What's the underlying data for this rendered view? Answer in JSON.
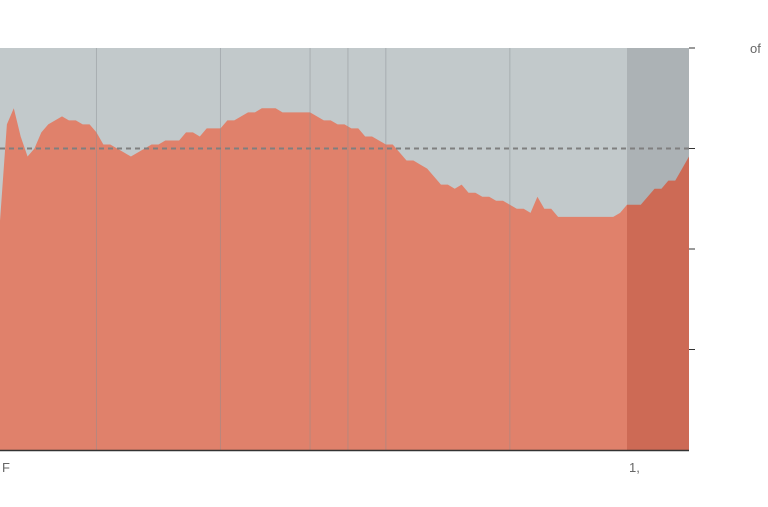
{
  "chart_data": {
    "type": "area",
    "title": "",
    "xlabel": "",
    "ylabel": "",
    "ylim": [
      0,
      100
    ],
    "y_ticks": [
      {
        "value": 100,
        "label": "of"
      },
      {
        "value": 75,
        "label": ""
      },
      {
        "value": 50,
        "label": ""
      },
      {
        "value": 25,
        "label": ""
      }
    ],
    "x_ticks": [
      {
        "label": "F",
        "x": 0
      },
      {
        "label": "",
        "x": 14
      },
      {
        "label": "",
        "x": 32
      },
      {
        "label": "",
        "x": 45
      },
      {
        "label": "",
        "x": 50.5
      },
      {
        "label": "",
        "x": 56
      },
      {
        "label": "",
        "x": 74
      },
      {
        "label": "1,",
        "x": 91
      },
      {
        "label": "",
        "x": 100
      }
    ],
    "reference_value": 75,
    "shaded_from": 91,
    "series": [
      {
        "x": [
          0,
          1,
          2,
          3,
          4,
          5,
          6,
          7,
          8,
          9,
          10,
          11,
          12,
          13,
          14,
          15,
          16,
          17,
          18,
          19,
          20,
          21,
          22,
          23,
          24,
          25,
          26,
          27,
          28,
          29,
          30,
          31,
          32,
          33,
          34,
          35,
          36,
          37,
          38,
          39,
          40,
          41,
          42,
          43,
          44,
          45,
          46,
          47,
          48,
          49,
          50,
          51,
          52,
          53,
          54,
          55,
          56,
          57,
          58,
          59,
          60,
          61,
          62,
          63,
          64,
          65,
          66,
          67,
          68,
          69,
          70,
          71,
          72,
          73,
          74,
          75,
          76,
          77,
          78,
          79,
          80,
          81,
          82,
          83,
          84,
          85,
          86,
          87,
          88,
          89,
          90,
          91,
          92,
          93,
          94,
          95,
          96,
          97,
          98,
          99,
          100
        ],
        "values": [
          57,
          81,
          85,
          78,
          73,
          75,
          79,
          81,
          82,
          83,
          82,
          82,
          81,
          81,
          79,
          76,
          76,
          75,
          74,
          73,
          74,
          75,
          76,
          76,
          77,
          77,
          77,
          79,
          79,
          78,
          80,
          80,
          80,
          82,
          82,
          83,
          84,
          84,
          85,
          85,
          85,
          84,
          84,
          84,
          84,
          84,
          83,
          82,
          82,
          81,
          81,
          80,
          80,
          78,
          78,
          77,
          76,
          76,
          74,
          72,
          72,
          71,
          70,
          68,
          66,
          66,
          65,
          66,
          64,
          64,
          63,
          63,
          62,
          62,
          61,
          60,
          60,
          59,
          63,
          60,
          60,
          58,
          58,
          58,
          58,
          58,
          58,
          58,
          58,
          58,
          59,
          61,
          61,
          61,
          63,
          65,
          65,
          67,
          67,
          70,
          73
        ]
      }
    ]
  },
  "colors": {
    "background_area": "#c2c9cb",
    "background_area_shaded": "#acb2b5",
    "series_area": "#e0816b",
    "series_area_shaded": "#cd6a55",
    "reference_line": "#7f7f7f",
    "gridline": "#8a8f92",
    "axis": "#333333",
    "tick_text": "#666666"
  }
}
